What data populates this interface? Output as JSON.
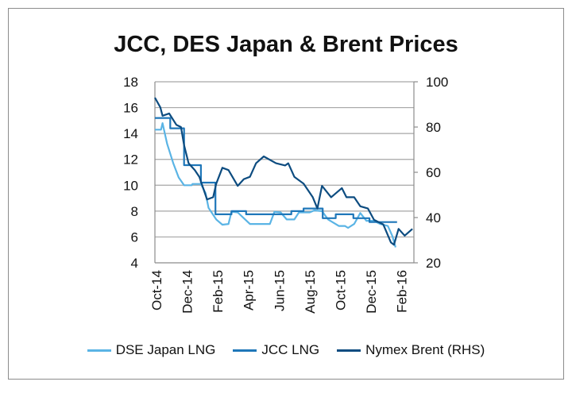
{
  "chart_data": {
    "type": "line",
    "title": "JCC, DES Japan & Brent Prices",
    "xlabel": "",
    "ylabel": "",
    "x_unit": "months since Oct-14",
    "xlim": [
      0,
      16.9
    ],
    "x_tick_labels": [
      "Oct-14",
      "Dec-14",
      "Feb-15",
      "Apr-15",
      "Jun-15",
      "Aug-15",
      "Oct-15",
      "Dec-15",
      "Feb-16"
    ],
    "ylim_left": [
      4,
      18
    ],
    "y_ticks_left": [
      4,
      6,
      8,
      10,
      12,
      14,
      16,
      18
    ],
    "ylim_right": [
      20,
      100
    ],
    "y_ticks_right": [
      20,
      40,
      60,
      80,
      100
    ],
    "grid": true,
    "legend_position": "bottom",
    "series": [
      {
        "name": "DSE Japan LNG",
        "axis": "left",
        "color": "#5ab4e5",
        "points": [
          [
            0,
            14.3
          ],
          [
            0.4,
            14.3
          ],
          [
            0.5,
            14.8
          ],
          [
            0.8,
            13.2
          ],
          [
            1.2,
            11.7
          ],
          [
            1.55,
            10.6
          ],
          [
            1.9,
            10.0
          ],
          [
            2.4,
            10.0
          ],
          [
            2.45,
            10.1
          ],
          [
            3.0,
            10.1
          ],
          [
            3.3,
            9.4
          ],
          [
            3.5,
            8.25
          ],
          [
            4.0,
            7.35
          ],
          [
            4.4,
            6.95
          ],
          [
            4.8,
            7.0
          ],
          [
            5.0,
            7.95
          ],
          [
            5.4,
            7.9
          ],
          [
            5.8,
            7.45
          ],
          [
            6.2,
            7.0
          ],
          [
            7.5,
            7.0
          ],
          [
            7.8,
            7.95
          ],
          [
            8.2,
            7.9
          ],
          [
            8.6,
            7.35
          ],
          [
            9.1,
            7.35
          ],
          [
            9.4,
            7.9
          ],
          [
            10.1,
            7.9
          ],
          [
            10.4,
            8.05
          ],
          [
            10.9,
            8.0
          ],
          [
            11.3,
            7.35
          ],
          [
            12.0,
            6.85
          ],
          [
            12.4,
            6.85
          ],
          [
            12.6,
            6.7
          ],
          [
            13.0,
            7.0
          ],
          [
            13.4,
            7.85
          ],
          [
            13.8,
            7.25
          ],
          [
            14.3,
            7.25
          ],
          [
            14.7,
            7.0
          ],
          [
            15.2,
            6.85
          ],
          [
            15.5,
            6.05
          ],
          [
            15.7,
            5.2
          ]
        ]
      },
      {
        "name": "JCC LNG",
        "axis": "left",
        "color": "#1f77b9",
        "points": [
          [
            0,
            15.2
          ],
          [
            1.0,
            15.2
          ],
          [
            1.0,
            14.4
          ],
          [
            1.9,
            14.4
          ],
          [
            1.9,
            11.55
          ],
          [
            3.0,
            11.55
          ],
          [
            3.0,
            10.2
          ],
          [
            3.95,
            10.2
          ],
          [
            3.95,
            7.75
          ],
          [
            5.0,
            7.75
          ],
          [
            5.0,
            8.0
          ],
          [
            5.95,
            8.0
          ],
          [
            5.95,
            7.75
          ],
          [
            8.9,
            7.75
          ],
          [
            8.9,
            8.0
          ],
          [
            9.7,
            8.0
          ],
          [
            9.7,
            8.2
          ],
          [
            10.95,
            8.2
          ],
          [
            10.95,
            7.45
          ],
          [
            11.8,
            7.45
          ],
          [
            11.8,
            7.75
          ],
          [
            12.95,
            7.75
          ],
          [
            12.95,
            7.45
          ],
          [
            14.0,
            7.45
          ],
          [
            14.0,
            7.15
          ],
          [
            15.8,
            7.15
          ]
        ]
      },
      {
        "name": "Nymex Brent (RHS)",
        "axis": "right",
        "color": "#0d4c80",
        "points": [
          [
            0,
            93
          ],
          [
            0.35,
            88.7
          ],
          [
            0.5,
            85
          ],
          [
            0.93,
            86
          ],
          [
            1.4,
            81
          ],
          [
            1.7,
            80
          ],
          [
            1.9,
            72
          ],
          [
            2.2,
            64
          ],
          [
            2.6,
            61
          ],
          [
            2.9,
            58
          ],
          [
            3.4,
            48
          ],
          [
            3.8,
            49
          ],
          [
            4.0,
            55
          ],
          [
            4.4,
            62
          ],
          [
            4.8,
            61
          ],
          [
            5.4,
            54
          ],
          [
            5.8,
            57
          ],
          [
            6.2,
            58
          ],
          [
            6.6,
            64
          ],
          [
            7.1,
            67
          ],
          [
            7.9,
            64
          ],
          [
            8.5,
            63
          ],
          [
            8.7,
            64
          ],
          [
            9.1,
            58
          ],
          [
            9.7,
            55
          ],
          [
            10.3,
            49
          ],
          [
            10.6,
            44
          ],
          [
            10.9,
            54
          ],
          [
            11.5,
            49
          ],
          [
            12.2,
            53
          ],
          [
            12.5,
            49
          ],
          [
            13.0,
            49
          ],
          [
            13.4,
            45
          ],
          [
            13.9,
            44
          ],
          [
            14.3,
            39
          ],
          [
            14.9,
            37
          ],
          [
            15.4,
            29
          ],
          [
            15.6,
            28
          ],
          [
            15.9,
            35
          ],
          [
            16.3,
            32
          ],
          [
            16.8,
            35
          ]
        ]
      }
    ]
  }
}
